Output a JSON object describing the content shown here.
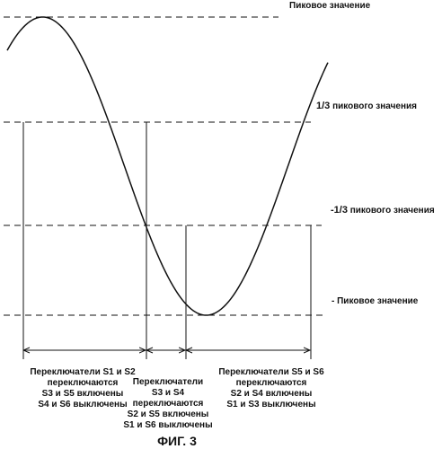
{
  "levels": {
    "peak": "Пиковое значение",
    "plus_third_prefix": "1/3",
    "plus_third_suffix": " пикового значения",
    "minus_third_prefix": "-1/3",
    "minus_third_suffix": " пикового значения",
    "neg_peak": "- Пиковое значение"
  },
  "intervals": [
    {
      "lines": [
        "Переключатели S1 и S2",
        "переключаются",
        "S3 и S5 включены",
        "S4 и S6 выключены"
      ]
    },
    {
      "lines": [
        "Переключатели",
        "S3 и S4",
        "переключаются",
        "S2 и S5 включены",
        "S1 и S6 выключены"
      ]
    },
    {
      "lines": [
        "Переключатели S5 и S6",
        "переключаются",
        "S2 и S4 включены",
        "S1 и S3 выключены"
      ]
    }
  ],
  "figure_caption": "ФИГ. 3",
  "colors": {
    "ink": "#111111",
    "background": "#ffffff"
  }
}
